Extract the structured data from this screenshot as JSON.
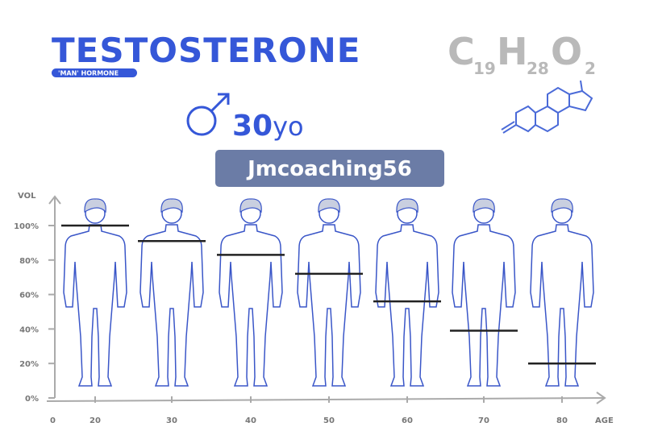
{
  "header": {
    "title": "TESTOSTERONE",
    "subtitle": "'MAN' HORMONE",
    "age_number": "30",
    "age_suffix": "yo",
    "male-symbol-icon": "male-symbol-icon",
    "formula": {
      "c": "C",
      "c_n": "19",
      "h": "H",
      "h_n": "28",
      "o": "O",
      "o_n": "2"
    },
    "molecule_icon": "steroid-structure-icon"
  },
  "watermark": "Jmcoaching56",
  "colors": {
    "accent": "#3557d8",
    "body_fill": "#2f4fe6",
    "badge": "#6b7ca6",
    "formula": "#b9b9b9"
  },
  "chart_data": {
    "type": "bar",
    "ylabel": "VOL",
    "xlabel": "AGE",
    "x_origin_label": "0",
    "categories": [
      "20",
      "30",
      "40",
      "50",
      "60",
      "70",
      "80"
    ],
    "values": [
      100,
      91,
      83,
      72,
      56,
      39,
      20
    ],
    "yticks": [
      "0%",
      "20%",
      "40%",
      "60%",
      "80%",
      "100%"
    ],
    "ylim": [
      0,
      100
    ],
    "grid": false
  }
}
